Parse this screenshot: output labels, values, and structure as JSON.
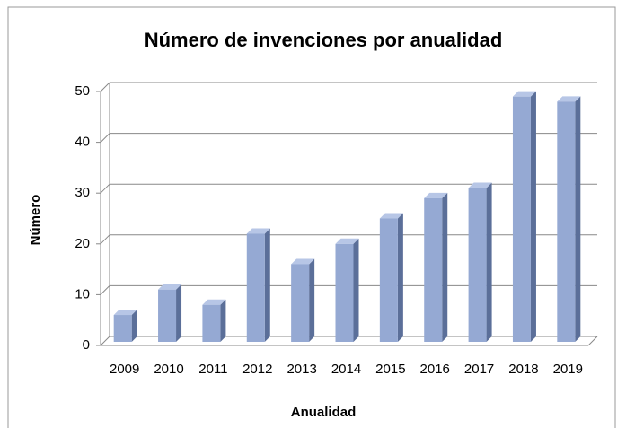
{
  "chart_data": {
    "type": "bar",
    "title": "Número de invenciones por anualidad",
    "xlabel": "Anualidad",
    "ylabel": "Número",
    "categories": [
      "2009",
      "2010",
      "2011",
      "2012",
      "2013",
      "2014",
      "2015",
      "2016",
      "2017",
      "2018",
      "2019"
    ],
    "values": [
      6,
      11,
      8,
      22,
      16,
      20,
      25,
      29,
      31,
      49,
      48
    ],
    "color": "#95a9d3",
    "ylim": [
      0,
      50
    ],
    "yticks": [
      0,
      10,
      20,
      30,
      40,
      50
    ],
    "grid": true
  }
}
